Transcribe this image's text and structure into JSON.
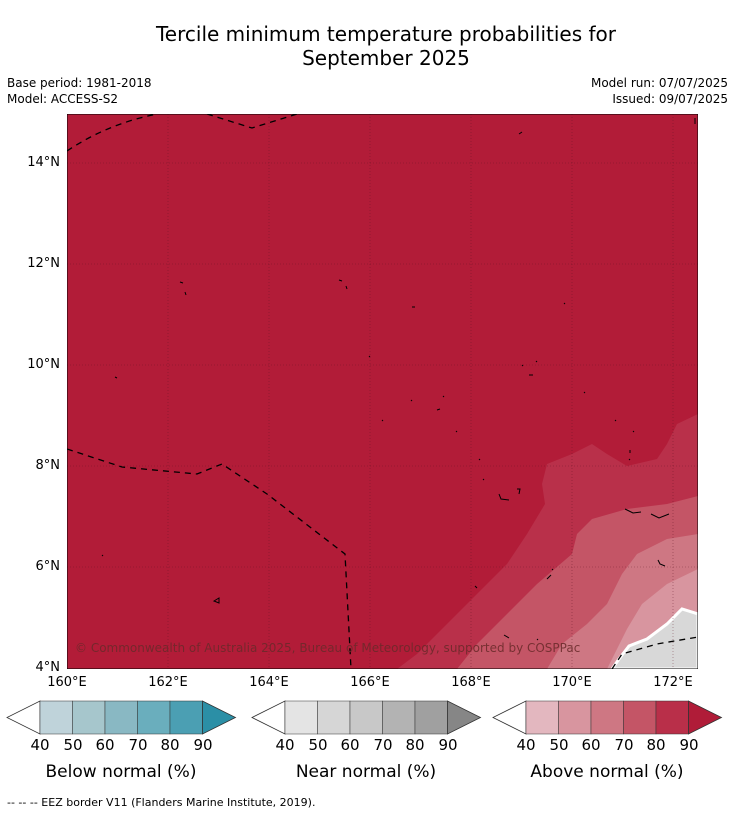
{
  "title_line1": "Tercile minimum temperature probabilities for",
  "title_line2": "September 2025",
  "base_period": "Base period: 1981-2018",
  "model": "Model: ACCESS-S2",
  "model_run": "Model run: 07/07/2025",
  "issued": "Issued: 09/07/2025",
  "copyright": "© Commonwealth of Australia 2025, Bureau of Meteorology, supported by COSPPac",
  "footnote": "--  --  -- EEZ border V11 (Flanders Marine Institute, 2019).",
  "lat_ticks": [
    "14°N",
    "12°N",
    "10°N",
    "8°N",
    "6°N",
    "4°N"
  ],
  "lon_ticks": [
    "160°E",
    "162°E",
    "164°E",
    "166°E",
    "168°E",
    "170°E",
    "172°E"
  ],
  "colorbars": [
    {
      "title": "Below normal (%)",
      "labels": [
        "40",
        "50",
        "60",
        "70",
        "80",
        "90"
      ],
      "colors": [
        "#ffffff",
        "#bfd3da",
        "#a6c6cc",
        "#89b8c3",
        "#6aaebd",
        "#4b9fb3",
        "#2b8fa6"
      ]
    },
    {
      "title": "Near normal (%)",
      "labels": [
        "40",
        "50",
        "60",
        "70",
        "80",
        "90"
      ],
      "colors": [
        "#ffffff",
        "#e4e4e4",
        "#d6d6d6",
        "#c8c8c8",
        "#b3b3b3",
        "#a0a0a0",
        "#868686"
      ]
    },
    {
      "title": "Above normal (%)",
      "labels": [
        "40",
        "50",
        "60",
        "70",
        "80",
        "90"
      ],
      "colors": [
        "#ffffff",
        "#e3b7bf",
        "#d8959f",
        "#ce7783",
        "#c45566",
        "#b92f49",
        "#b01c38"
      ]
    }
  ]
}
